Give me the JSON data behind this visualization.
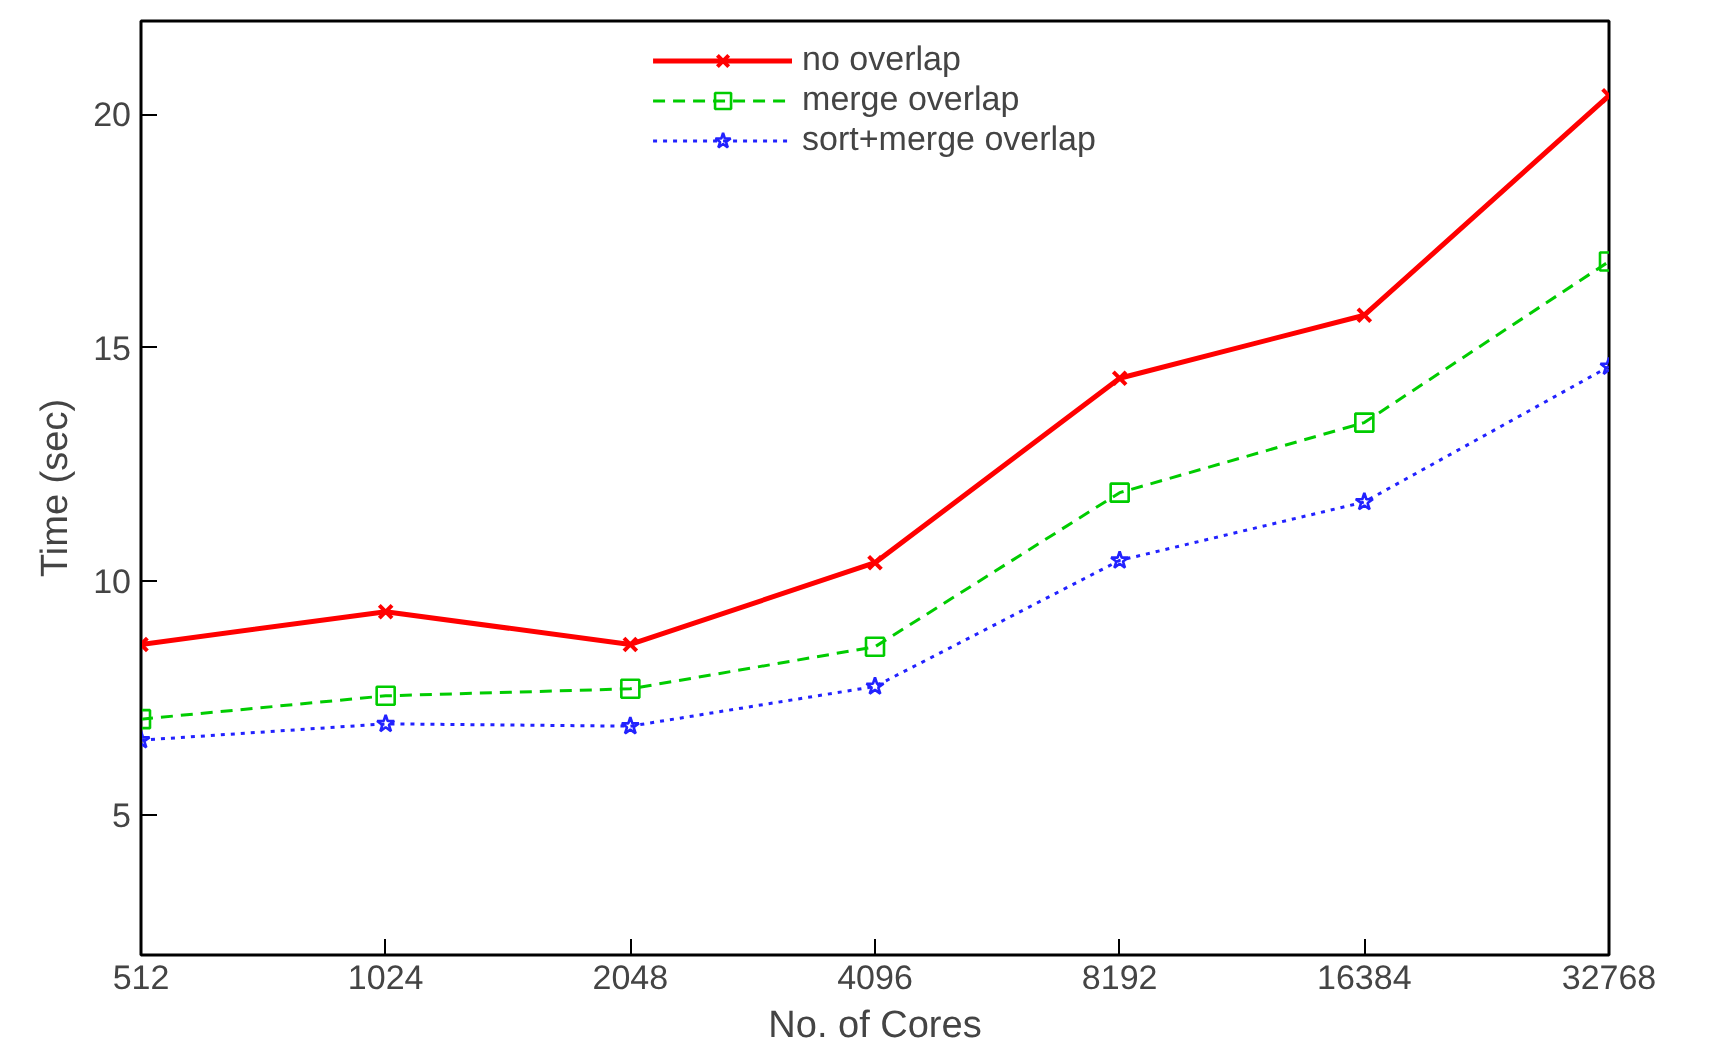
{
  "chart_data": {
    "type": "line",
    "xlabel": "No. of Cores",
    "ylabel": "Time (sec)",
    "categories": [
      "512",
      "1024",
      "2048",
      "4096",
      "8192",
      "16384",
      "32768"
    ],
    "ylim": [
      2,
      22
    ],
    "yticks": [
      5,
      10,
      15,
      20
    ],
    "grid": false,
    "legend": "top",
    "series": [
      {
        "name": "no overlap",
        "color": "#ff0000",
        "marker": "cross",
        "line_style": "solid",
        "values": [
          8.65,
          9.35,
          8.65,
          10.4,
          14.35,
          15.7,
          20.4
        ]
      },
      {
        "name": "merge overlap",
        "color": "#00cc00",
        "marker": "square",
        "line_style": "dashed",
        "values": [
          7.05,
          7.55,
          7.7,
          8.6,
          11.9,
          13.4,
          16.85
        ]
      },
      {
        "name": "sort+merge overlap",
        "color": "#2222ff",
        "marker": "star",
        "line_style": "dotted",
        "values": [
          6.6,
          6.95,
          6.9,
          7.75,
          10.45,
          11.7,
          14.6
        ]
      }
    ]
  }
}
